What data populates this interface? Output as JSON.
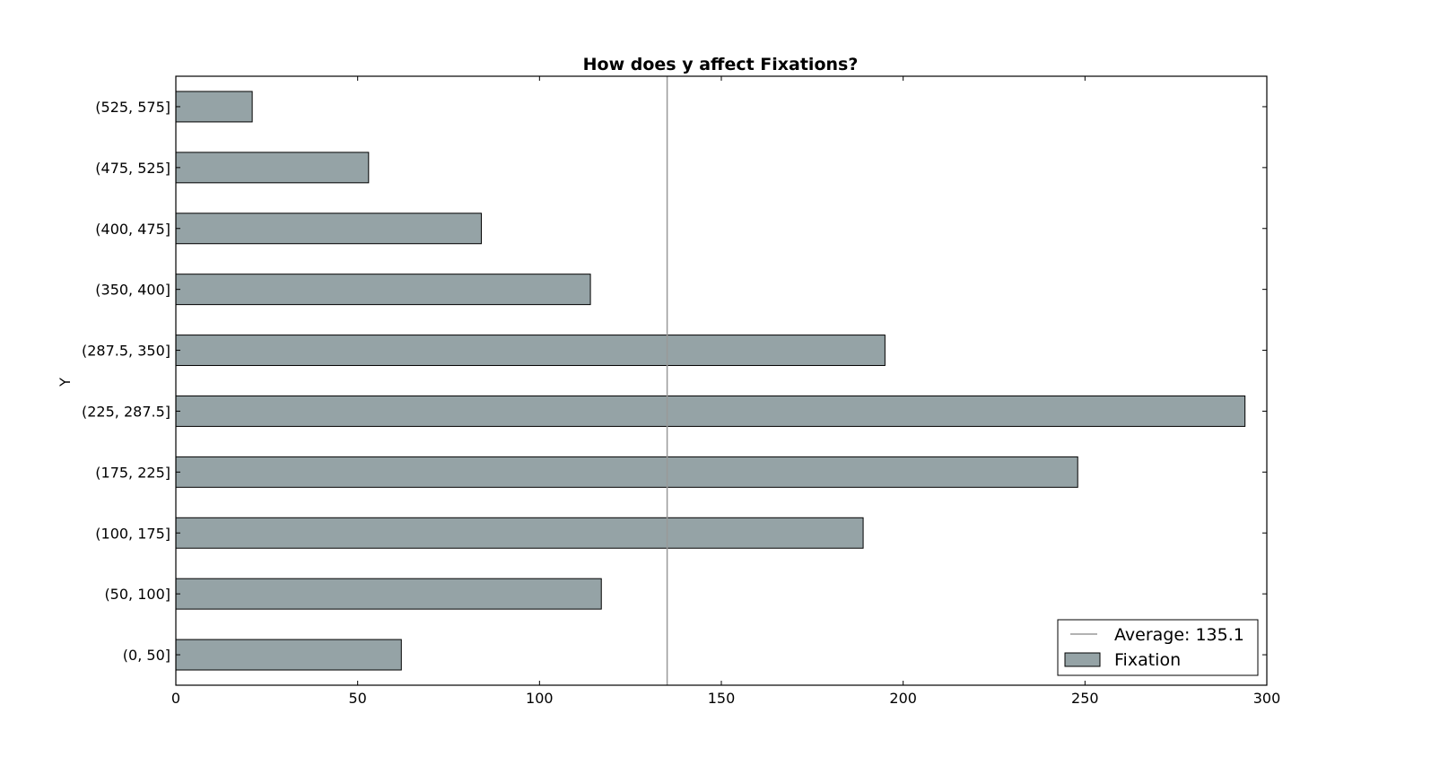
{
  "chart_data": {
    "type": "bar",
    "orientation": "horizontal",
    "title": "How does y affect Fixations?",
    "xlabel": "",
    "ylabel": "Y",
    "xlim": [
      0,
      300
    ],
    "xticks": [
      0,
      50,
      100,
      150,
      200,
      250,
      300
    ],
    "categories": [
      "(0, 50]",
      "(50, 100]",
      "(100, 175]",
      "(175, 225]",
      "(225, 287.5]",
      "(287.5, 350]",
      "(350, 400]",
      "(400, 475]",
      "(475, 525]",
      "(525, 575]"
    ],
    "series": [
      {
        "name": "Fixation",
        "values": [
          62,
          117,
          189,
          248,
          294,
          195,
          114,
          84,
          53,
          21
        ],
        "color": "#95a3a6"
      }
    ],
    "reference_line": {
      "value": 135.1,
      "label": "Average: 135.1",
      "color": "#999999"
    },
    "grid": false,
    "legend_position": "bottom-right"
  }
}
